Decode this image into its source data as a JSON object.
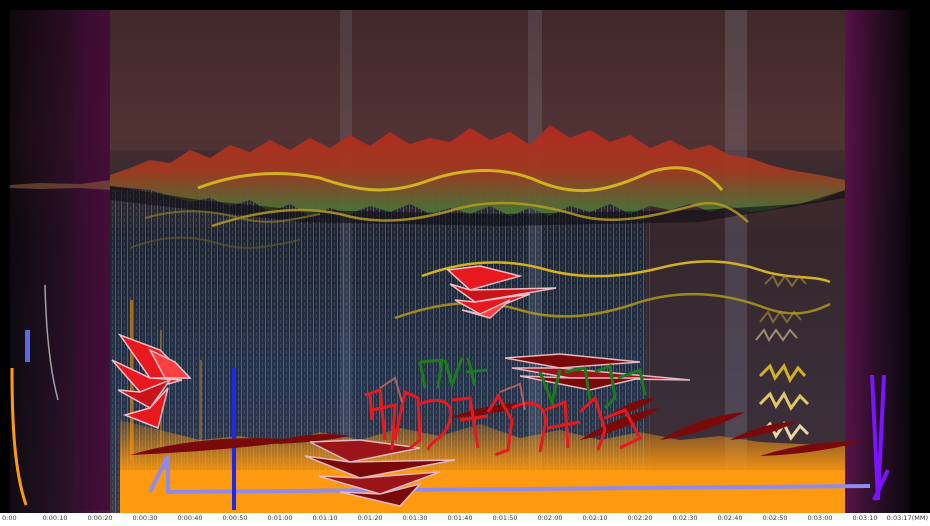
{
  "timeline": {
    "ticks": [
      "0:00",
      "0:00:10",
      "0:00:20",
      "0:00:30",
      "0:00:40",
      "0:00:50",
      "0:01:00",
      "0:01:10",
      "0:01:20",
      "0:01:30",
      "0:01:40",
      "0:01:50",
      "0:02:00",
      "0:02:10",
      "0:02:20",
      "0:02:30",
      "0:02:40",
      "0:02:50",
      "0:03:00",
      "0:03:10",
      "0:03:17(MM)"
    ]
  },
  "colors": {
    "spectrogram_dark": "#1a0f10",
    "spectrogram_mid": "#5a3a3a",
    "noise_blue": "#9fb4d6",
    "waveform_red": "#c8281e",
    "waveform_green": "#3f7a3a",
    "wave_yellow": "#d4b21e",
    "energy_orange": "#ff9a10",
    "magenta_edge": "#5a0f4a",
    "glyph_red": "#e8191e",
    "glyph_green": "#1e7a1e",
    "glyph_blue": "#1e28e6",
    "glyph_violet": "#7a14ff",
    "glyph_lavender": "#8c8cf0",
    "leaf_darkred": "#7a0a0a"
  }
}
